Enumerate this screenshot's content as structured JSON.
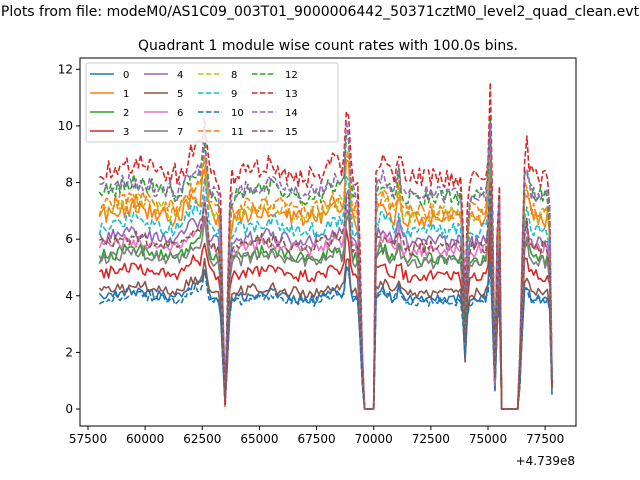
{
  "chart_data": {
    "type": "line",
    "suptitle": "Plots from file: modeM0/AS1C09_003T01_9000006442_50371cztM0_level2_quad_clean.evt",
    "title": "Quadrant 1 module wise count rates with 100.0s bins.",
    "xlabel": "",
    "ylabel": "",
    "x_offset_label": "+4.739e8",
    "xlim": [
      57150,
      78850
    ],
    "ylim": [
      -0.6,
      12.4
    ],
    "x_ticks": [
      57500,
      60000,
      62500,
      65000,
      67500,
      70000,
      72500,
      75000,
      77500
    ],
    "x_tick_labels": [
      "57500",
      "60000",
      "62500",
      "65000",
      "67500",
      "70000",
      "72500",
      "75000",
      "77500"
    ],
    "y_ticks": [
      0,
      2,
      4,
      6,
      8,
      10,
      12
    ],
    "y_tick_labels": [
      "0",
      "2",
      "4",
      "6",
      "8",
      "10",
      "12"
    ],
    "x_range": [
      58000,
      77800
    ],
    "x_step": 100,
    "legend": {
      "position": "top-left",
      "columns": 4
    },
    "features": {
      "pre_gap_peak": [
        62600,
        1.3
      ],
      "dip1": [
        63500,
        0.03
      ],
      "peak2": [
        68850,
        1.5
      ],
      "gap1": [
        69600,
        70000
      ],
      "spike1": [
        71100,
        1.15
      ],
      "dip2": [
        74000,
        0.5
      ],
      "spike2": [
        75100,
        1.4
      ],
      "dip3": [
        75300,
        0.15
      ],
      "gap2": [
        75600,
        76300
      ],
      "dip4": [
        77800,
        0.15
      ]
    },
    "series": [
      {
        "name": "0",
        "color": "#1f77b4",
        "dash": "solid",
        "base": 3.9
      },
      {
        "name": "1",
        "color": "#ff7f0e",
        "dash": "solid",
        "base": 6.7
      },
      {
        "name": "2",
        "color": "#2ca02c",
        "dash": "solid",
        "base": 5.3
      },
      {
        "name": "3",
        "color": "#d62728",
        "dash": "solid",
        "base": 4.7
      },
      {
        "name": "4",
        "color": "#9467bd",
        "dash": "solid",
        "base": 5.9
      },
      {
        "name": "5",
        "color": "#8c564b",
        "dash": "solid",
        "base": 4.1
      },
      {
        "name": "6",
        "color": "#e377c2",
        "dash": "solid",
        "base": 5.6
      },
      {
        "name": "7",
        "color": "#7f7f7f",
        "dash": "solid",
        "base": 5.2
      },
      {
        "name": "8",
        "color": "#bcbd22",
        "dash": "dashed",
        "base": 6.9
      },
      {
        "name": "9",
        "color": "#17becf",
        "dash": "dashed",
        "base": 6.3
      },
      {
        "name": "10",
        "color": "#1f77b4",
        "dash": "dashed",
        "base": 3.8
      },
      {
        "name": "11",
        "color": "#ff7f0e",
        "dash": "dashed",
        "base": 7.0
      },
      {
        "name": "12",
        "color": "#2ca02c",
        "dash": "dashed",
        "base": 7.5
      },
      {
        "name": "13",
        "color": "#d62728",
        "dash": "dashed",
        "base": 8.2
      },
      {
        "name": "14",
        "color": "#9467bd",
        "dash": "dashed",
        "base": 7.6
      },
      {
        "name": "15",
        "color": "#8c564b",
        "dash": "dashed",
        "base": 5.7
      }
    ]
  }
}
